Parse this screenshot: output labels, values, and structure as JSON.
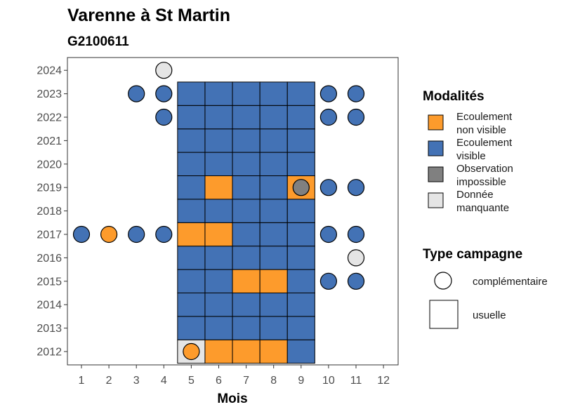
{
  "chart_data": {
    "type": "heatmap",
    "title": "Varenne à St Martin",
    "subtitle": "G2100611",
    "xlabel": "Mois",
    "ylabel": "",
    "x_ticks": [
      "1",
      "2",
      "3",
      "4",
      "5",
      "6",
      "7",
      "8",
      "9",
      "10",
      "11",
      "12"
    ],
    "y_ticks": [
      "2012",
      "2013",
      "2014",
      "2015",
      "2016",
      "2017",
      "2018",
      "2019",
      "2020",
      "2021",
      "2022",
      "2023",
      "2024"
    ],
    "xlim": [
      0.5,
      12.5
    ],
    "ylim": [
      2011.5,
      2024.5
    ],
    "grid": false,
    "legend_position": "right",
    "colors": {
      "Ecoulement non visible": "#FD9B2C",
      "Ecoulement visible": "#4372B5",
      "Observation impossible": "#808080",
      "Donnée manquante": "#E5E5E5"
    },
    "modalites_legend": {
      "title": "Modalités",
      "items": [
        {
          "key": "Ecoulement non visible",
          "line1": "Ecoulement",
          "line2": "non visible",
          "color": "#FD9B2C"
        },
        {
          "key": "Ecoulement visible",
          "line1": "Ecoulement",
          "line2": "visible",
          "color": "#4372B5"
        },
        {
          "key": "Observation impossible",
          "line1": "Observation",
          "line2": "impossible",
          "color": "#808080"
        },
        {
          "key": "Donnée manquante",
          "line1": "Donnée",
          "line2": "manquante",
          "color": "#E5E5E5"
        }
      ]
    },
    "campagne_legend": {
      "title": "Type campagne",
      "items": [
        {
          "label": "complémentaire",
          "shape": "circle"
        },
        {
          "label": "usuelle",
          "shape": "square"
        }
      ]
    },
    "usuelle": [
      {
        "year": 2012,
        "month": 5,
        "value": "Donnée manquante"
      },
      {
        "year": 2012,
        "month": 6,
        "value": "Ecoulement non visible"
      },
      {
        "year": 2012,
        "month": 7,
        "value": "Ecoulement non visible"
      },
      {
        "year": 2012,
        "month": 8,
        "value": "Ecoulement non visible"
      },
      {
        "year": 2012,
        "month": 9,
        "value": "Ecoulement visible"
      },
      {
        "year": 2013,
        "month": 5,
        "value": "Ecoulement visible"
      },
      {
        "year": 2013,
        "month": 6,
        "value": "Ecoulement visible"
      },
      {
        "year": 2013,
        "month": 7,
        "value": "Ecoulement visible"
      },
      {
        "year": 2013,
        "month": 8,
        "value": "Ecoulement visible"
      },
      {
        "year": 2013,
        "month": 9,
        "value": "Ecoulement visible"
      },
      {
        "year": 2014,
        "month": 5,
        "value": "Ecoulement visible"
      },
      {
        "year": 2014,
        "month": 6,
        "value": "Ecoulement visible"
      },
      {
        "year": 2014,
        "month": 7,
        "value": "Ecoulement visible"
      },
      {
        "year": 2014,
        "month": 8,
        "value": "Ecoulement visible"
      },
      {
        "year": 2014,
        "month": 9,
        "value": "Ecoulement visible"
      },
      {
        "year": 2015,
        "month": 5,
        "value": "Ecoulement visible"
      },
      {
        "year": 2015,
        "month": 6,
        "value": "Ecoulement visible"
      },
      {
        "year": 2015,
        "month": 7,
        "value": "Ecoulement non visible"
      },
      {
        "year": 2015,
        "month": 8,
        "value": "Ecoulement non visible"
      },
      {
        "year": 2015,
        "month": 9,
        "value": "Ecoulement visible"
      },
      {
        "year": 2016,
        "month": 5,
        "value": "Ecoulement visible"
      },
      {
        "year": 2016,
        "month": 6,
        "value": "Ecoulement visible"
      },
      {
        "year": 2016,
        "month": 7,
        "value": "Ecoulement visible"
      },
      {
        "year": 2016,
        "month": 8,
        "value": "Ecoulement visible"
      },
      {
        "year": 2016,
        "month": 9,
        "value": "Ecoulement visible"
      },
      {
        "year": 2017,
        "month": 5,
        "value": "Ecoulement non visible"
      },
      {
        "year": 2017,
        "month": 6,
        "value": "Ecoulement non visible"
      },
      {
        "year": 2017,
        "month": 7,
        "value": "Ecoulement visible"
      },
      {
        "year": 2017,
        "month": 8,
        "value": "Ecoulement visible"
      },
      {
        "year": 2017,
        "month": 9,
        "value": "Ecoulement visible"
      },
      {
        "year": 2018,
        "month": 5,
        "value": "Ecoulement visible"
      },
      {
        "year": 2018,
        "month": 6,
        "value": "Ecoulement visible"
      },
      {
        "year": 2018,
        "month": 7,
        "value": "Ecoulement visible"
      },
      {
        "year": 2018,
        "month": 8,
        "value": "Ecoulement visible"
      },
      {
        "year": 2018,
        "month": 9,
        "value": "Ecoulement visible"
      },
      {
        "year": 2019,
        "month": 5,
        "value": "Ecoulement visible"
      },
      {
        "year": 2019,
        "month": 6,
        "value": "Ecoulement non visible"
      },
      {
        "year": 2019,
        "month": 7,
        "value": "Ecoulement visible"
      },
      {
        "year": 2019,
        "month": 8,
        "value": "Ecoulement visible"
      },
      {
        "year": 2019,
        "month": 9,
        "value": "Ecoulement non visible"
      },
      {
        "year": 2020,
        "month": 5,
        "value": "Ecoulement visible"
      },
      {
        "year": 2020,
        "month": 6,
        "value": "Ecoulement visible"
      },
      {
        "year": 2020,
        "month": 7,
        "value": "Ecoulement visible"
      },
      {
        "year": 2020,
        "month": 8,
        "value": "Ecoulement visible"
      },
      {
        "year": 2020,
        "month": 9,
        "value": "Ecoulement visible"
      },
      {
        "year": 2021,
        "month": 5,
        "value": "Ecoulement visible"
      },
      {
        "year": 2021,
        "month": 6,
        "value": "Ecoulement visible"
      },
      {
        "year": 2021,
        "month": 7,
        "value": "Ecoulement visible"
      },
      {
        "year": 2021,
        "month": 8,
        "value": "Ecoulement visible"
      },
      {
        "year": 2021,
        "month": 9,
        "value": "Ecoulement visible"
      },
      {
        "year": 2022,
        "month": 5,
        "value": "Ecoulement visible"
      },
      {
        "year": 2022,
        "month": 6,
        "value": "Ecoulement visible"
      },
      {
        "year": 2022,
        "month": 7,
        "value": "Ecoulement visible"
      },
      {
        "year": 2022,
        "month": 8,
        "value": "Ecoulement visible"
      },
      {
        "year": 2022,
        "month": 9,
        "value": "Ecoulement visible"
      },
      {
        "year": 2023,
        "month": 5,
        "value": "Ecoulement visible"
      },
      {
        "year": 2023,
        "month": 6,
        "value": "Ecoulement visible"
      },
      {
        "year": 2023,
        "month": 7,
        "value": "Ecoulement visible"
      },
      {
        "year": 2023,
        "month": 8,
        "value": "Ecoulement visible"
      },
      {
        "year": 2023,
        "month": 9,
        "value": "Ecoulement visible"
      }
    ],
    "complementaire": [
      {
        "year": 2012,
        "month": 5,
        "value": "Ecoulement non visible"
      },
      {
        "year": 2015,
        "month": 10,
        "value": "Ecoulement visible"
      },
      {
        "year": 2015,
        "month": 11,
        "value": "Ecoulement visible"
      },
      {
        "year": 2016,
        "month": 11,
        "value": "Donnée manquante"
      },
      {
        "year": 2017,
        "month": 1,
        "value": "Ecoulement visible"
      },
      {
        "year": 2017,
        "month": 2,
        "value": "Ecoulement non visible"
      },
      {
        "year": 2017,
        "month": 3,
        "value": "Ecoulement visible"
      },
      {
        "year": 2017,
        "month": 4,
        "value": "Ecoulement visible"
      },
      {
        "year": 2017,
        "month": 10,
        "value": "Ecoulement visible"
      },
      {
        "year": 2017,
        "month": 11,
        "value": "Ecoulement visible"
      },
      {
        "year": 2019,
        "month": 9,
        "value": "Observation impossible"
      },
      {
        "year": 2019,
        "month": 10,
        "value": "Ecoulement visible"
      },
      {
        "year": 2019,
        "month": 11,
        "value": "Ecoulement visible"
      },
      {
        "year": 2022,
        "month": 4,
        "value": "Ecoulement visible"
      },
      {
        "year": 2022,
        "month": 10,
        "value": "Ecoulement visible"
      },
      {
        "year": 2022,
        "month": 11,
        "value": "Ecoulement visible"
      },
      {
        "year": 2023,
        "month": 3,
        "value": "Ecoulement visible"
      },
      {
        "year": 2023,
        "month": 4,
        "value": "Ecoulement visible"
      },
      {
        "year": 2023,
        "month": 10,
        "value": "Ecoulement visible"
      },
      {
        "year": 2023,
        "month": 11,
        "value": "Ecoulement visible"
      },
      {
        "year": 2024,
        "month": 4,
        "value": "Donnée manquante"
      }
    ]
  }
}
